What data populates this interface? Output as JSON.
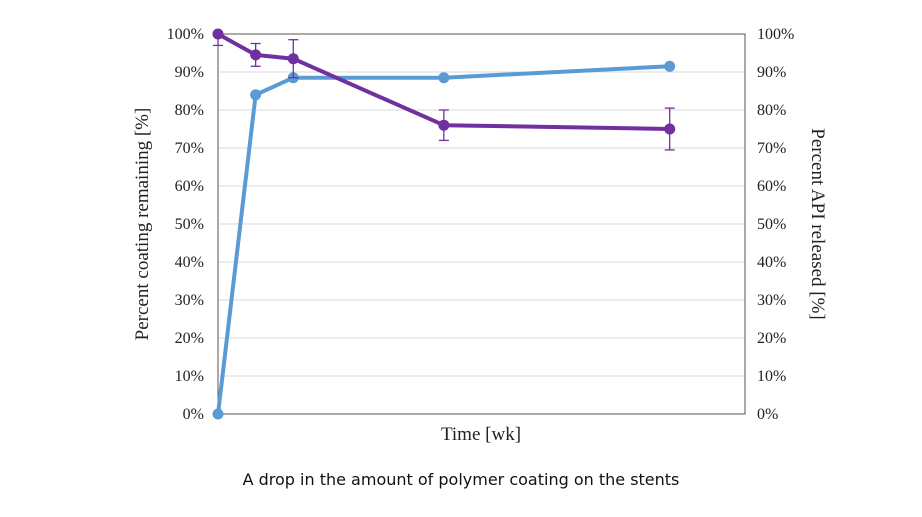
{
  "chart_data": {
    "type": "line",
    "xlabel": "Time [wk]",
    "ylabel_left": "Percent coating remaining [%]",
    "ylabel_right": "Percent API released [%]",
    "ylim": [
      0,
      100
    ],
    "xlim": [
      0,
      14
    ],
    "y_ticks": [
      "0%",
      "10%",
      "20%",
      "30%",
      "40%",
      "50%",
      "60%",
      "70%",
      "80%",
      "90%",
      "100%"
    ],
    "grid": "horizontal",
    "series": [
      {
        "axis": "left",
        "color": "#7030a0",
        "x": [
          0,
          1,
          2,
          6,
          12
        ],
        "y": [
          100,
          94.5,
          93.5,
          76,
          75
        ],
        "error": [
          3,
          3,
          5,
          4,
          5.5
        ]
      },
      {
        "axis": "right",
        "color": "#5b9bd5",
        "x": [
          0,
          1,
          2,
          6,
          12
        ],
        "y": [
          0,
          84,
          88.5,
          88.5,
          91.5
        ]
      }
    ]
  },
  "caption": "A drop in the amount of polymer coating on the stents"
}
